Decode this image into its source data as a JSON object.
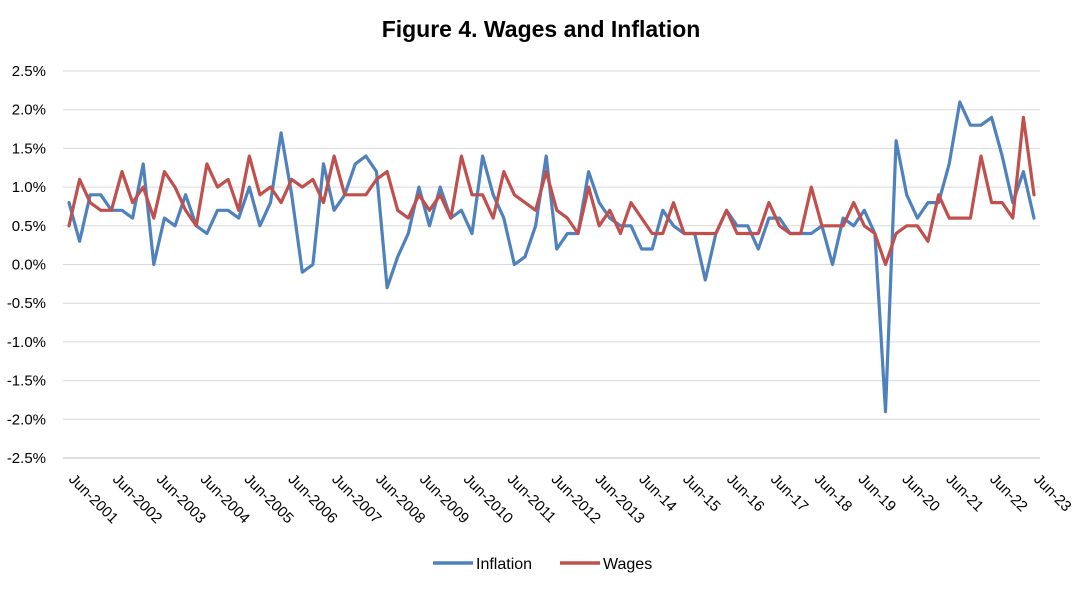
{
  "chart_data": {
    "type": "line",
    "title": "Figure 4. Wages and Inflation",
    "xlabel": "",
    "ylabel": "",
    "ylim": [
      -2.5,
      2.5
    ],
    "y_ticks": [
      "-2.5%",
      "-2.0%",
      "-1.5%",
      "-1.0%",
      "-0.5%",
      "0.0%",
      "0.5%",
      "1.0%",
      "1.5%",
      "2.0%",
      "2.5%"
    ],
    "y_tick_values": [
      -2.5,
      -2.0,
      -1.5,
      -1.0,
      -0.5,
      0.0,
      0.5,
      1.0,
      1.5,
      2.0,
      2.5
    ],
    "x_tick_labels": [
      "Jun-2001",
      "Jun-2002",
      "Jun-2003",
      "Jun-2004",
      "Jun-2005",
      "Jun-2006",
      "Jun-2007",
      "Jun-2008",
      "Jun-2009",
      "Jun-2010",
      "Jun-2011",
      "Jun-2012",
      "Jun-2013",
      "Jun-14",
      "Jun-15",
      "Jun-16",
      "Jun-17",
      "Jun-18",
      "Jun-19",
      "Jun-20",
      "Jun-21",
      "Jun-22",
      "Jun-23"
    ],
    "grid": true,
    "legend_position": "bottom",
    "series": [
      {
        "name": "Inflation",
        "color": "#4f81bd",
        "values": [
          0.8,
          0.3,
          0.9,
          0.9,
          0.7,
          0.7,
          0.6,
          1.3,
          0.0,
          0.6,
          0.5,
          0.9,
          0.5,
          0.4,
          0.7,
          0.7,
          0.6,
          1.0,
          0.5,
          0.8,
          1.7,
          0.9,
          -0.1,
          0.0,
          1.3,
          0.7,
          0.9,
          1.3,
          1.4,
          1.2,
          -0.3,
          0.1,
          0.4,
          1.0,
          0.5,
          1.0,
          0.6,
          0.7,
          0.4,
          1.4,
          0.9,
          0.6,
          0.0,
          0.1,
          0.5,
          1.4,
          0.2,
          0.4,
          0.4,
          1.2,
          0.8,
          0.6,
          0.5,
          0.5,
          0.2,
          0.2,
          0.7,
          0.5,
          0.4,
          0.4,
          -0.2,
          0.4,
          0.7,
          0.5,
          0.5,
          0.2,
          0.6,
          0.6,
          0.4,
          0.4,
          0.4,
          0.5,
          0.0,
          0.6,
          0.5,
          0.7,
          0.4,
          -1.9,
          1.6,
          0.9,
          0.6,
          0.8,
          0.8,
          1.3,
          2.1,
          1.8,
          1.8,
          1.9,
          1.4,
          0.8,
          1.2,
          0.6
        ]
      },
      {
        "name": "Wages",
        "color": "#c0504d",
        "values": [
          0.5,
          1.1,
          0.8,
          0.7,
          0.7,
          1.2,
          0.8,
          1.0,
          0.6,
          1.2,
          1.0,
          0.7,
          0.5,
          1.3,
          1.0,
          1.1,
          0.7,
          1.4,
          0.9,
          1.0,
          0.8,
          1.1,
          1.0,
          1.1,
          0.8,
          1.4,
          0.9,
          0.9,
          0.9,
          1.1,
          1.2,
          0.7,
          0.6,
          0.9,
          0.7,
          0.9,
          0.6,
          1.4,
          0.9,
          0.9,
          0.6,
          1.2,
          0.9,
          0.8,
          0.7,
          1.2,
          0.7,
          0.6,
          0.4,
          1.0,
          0.5,
          0.7,
          0.4,
          0.8,
          0.6,
          0.4,
          0.4,
          0.8,
          0.4,
          0.4,
          0.4,
          0.4,
          0.7,
          0.4,
          0.4,
          0.4,
          0.8,
          0.5,
          0.4,
          0.4,
          1.0,
          0.5,
          0.5,
          0.5,
          0.8,
          0.5,
          0.4,
          0.0,
          0.4,
          0.5,
          0.5,
          0.3,
          0.9,
          0.6,
          0.6,
          0.6,
          1.4,
          0.8,
          0.8,
          0.6,
          1.9,
          0.9
        ]
      }
    ]
  }
}
